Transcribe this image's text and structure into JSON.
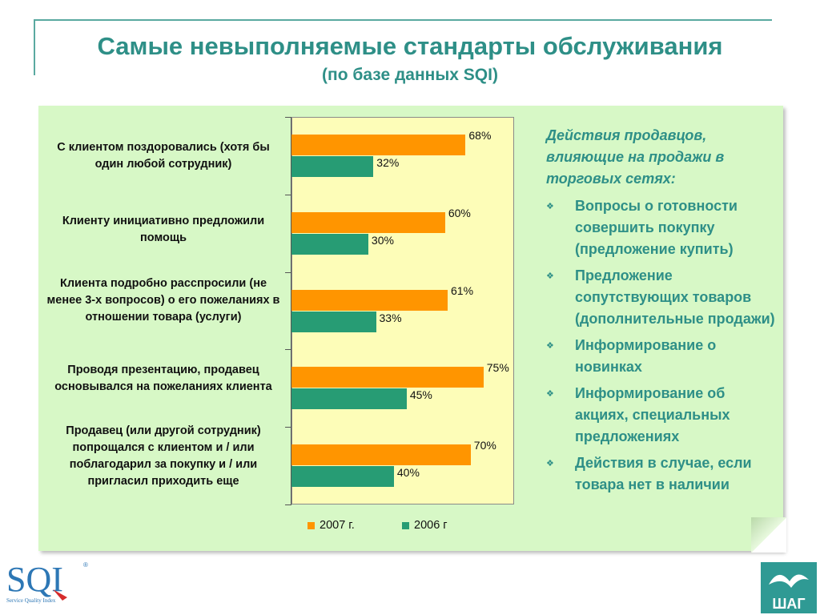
{
  "slide": {
    "title": "Самые невыполняемые стандарты обслуживания",
    "subtitle": "(по базе данных SQI)"
  },
  "chart_data": {
    "type": "bar",
    "orientation": "horizontal",
    "categories": [
      "С клиентом поздоровались (хотя бы один любой сотрудник)",
      "Клиенту инициативно предложили помощь",
      "Клиента подробно расспросили (не менее 3-х вопросов) о его пожеланиях в отношении товара (услуги)",
      "Проводя презентацию, продавец основывался на пожеланиях клиента",
      "Продавец (или другой сотрудник) попрощался с клиентом и / или поблагодарил за покупку и / или пригласил приходить еще"
    ],
    "series": [
      {
        "name": "2007 г.",
        "color": "#ff9500",
        "values": [
          68,
          60,
          61,
          75,
          70
        ],
        "labels": [
          "68%",
          "60%",
          "61%",
          "75%",
          "70%"
        ]
      },
      {
        "name": "2006 г",
        "color": "#279c74",
        "values": [
          32,
          30,
          33,
          45,
          40
        ],
        "labels": [
          "32%",
          "30%",
          "33%",
          "45%",
          "40%"
        ]
      }
    ],
    "xlim": [
      0,
      100
    ],
    "unit": "%",
    "legend_position": "bottom"
  },
  "side": {
    "heading": "Действия продавцов, влияющие на продажи в торговых сетях:",
    "bullet_icon": "diamond-dots-icon",
    "items": [
      "Вопросы о готовности совершить покупку (предложение купить)",
      "Предложение сопутствующих товаров (дополнительные продажи)",
      "Информирование о новинках",
      "Информирование об акциях, специальных предложениях",
      "Действия в случае, если товара нет в наличии"
    ]
  },
  "logos": {
    "left": {
      "text": "SQI",
      "tagline": "Service Quality Index",
      "mark": "®"
    },
    "right": {
      "text": "ШАГ"
    }
  }
}
